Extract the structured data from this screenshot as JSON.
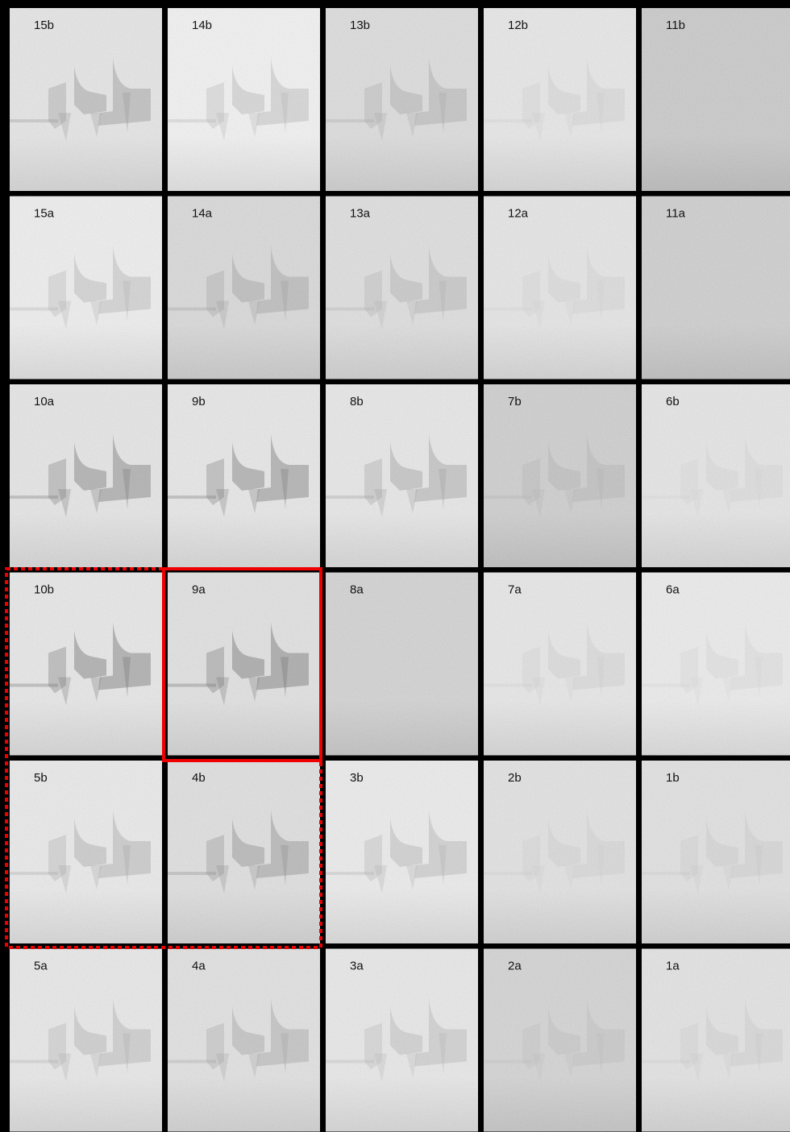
{
  "panels": [
    [
      "15b",
      "14b",
      "13b",
      "12b",
      "11b"
    ],
    [
      "15a",
      "14a",
      "13a",
      "12a",
      "11a"
    ],
    [
      "10a",
      "9b",
      "8b",
      "7b",
      "6b"
    ],
    [
      "10b",
      "9a",
      "8a",
      "7a",
      "6a"
    ],
    [
      "5b",
      "4b",
      "3b",
      "2b",
      "1b"
    ],
    [
      "5a",
      "4a",
      "3a",
      "2a",
      "1a"
    ]
  ]
}
